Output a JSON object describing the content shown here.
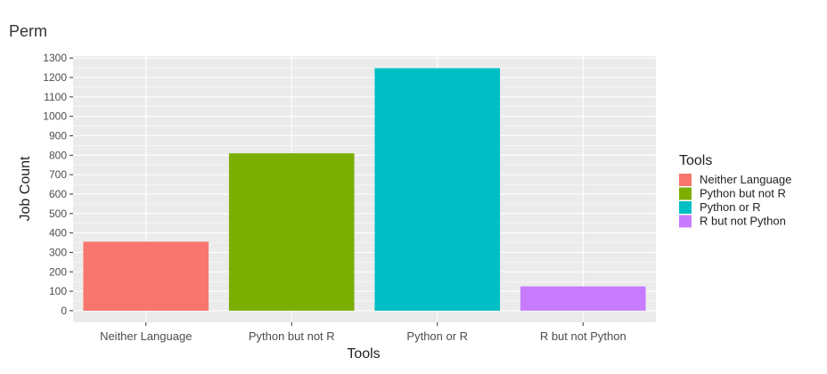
{
  "chart_data": {
    "type": "bar",
    "title": "Perm",
    "xlabel": "Tools",
    "ylabel": "Job Count",
    "categories": [
      "Neither Language",
      "Python but not R",
      "Python or R",
      "R but not Python"
    ],
    "values": [
      355,
      810,
      1248,
      125
    ],
    "colors": [
      "#F8766D",
      "#7CAE00",
      "#00BFC4",
      "#C77CFF"
    ],
    "ylim": [
      -60,
      1310
    ],
    "yticks": [
      0,
      100,
      200,
      300,
      400,
      500,
      600,
      700,
      800,
      900,
      1000,
      1100,
      1200,
      1300
    ],
    "grid": true,
    "legend": {
      "title": "Tools",
      "placement": "right",
      "entries": [
        "Neither Language",
        "Python but not R",
        "Python or R",
        "R but not Python"
      ]
    }
  }
}
